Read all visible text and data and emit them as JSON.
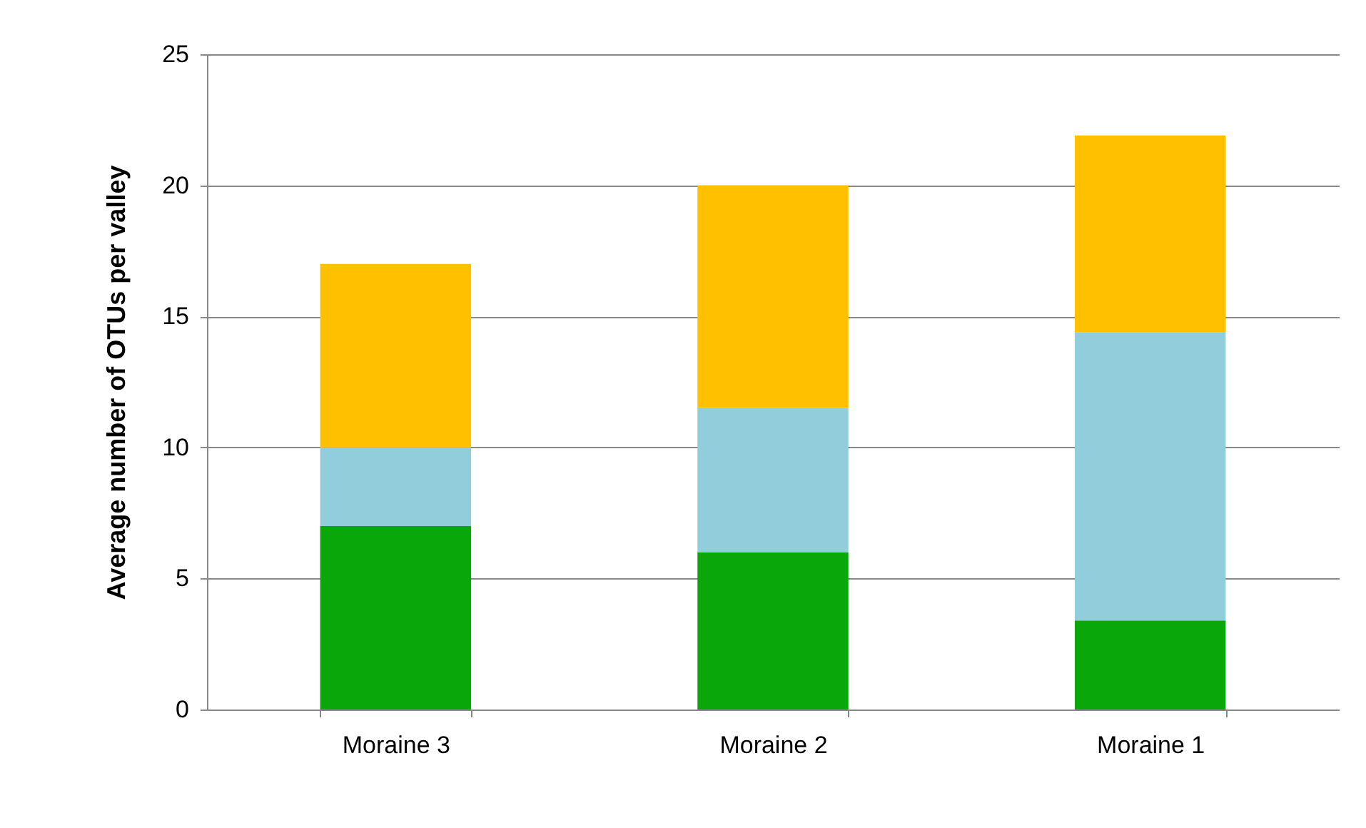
{
  "chart_data": {
    "type": "bar",
    "ylabel": "Average number of OTUs per valley",
    "categories": [
      "Moraine 3",
      "Moraine 2",
      "Moraine 1"
    ],
    "stacked": true,
    "ylim": [
      0,
      25
    ],
    "yticks": [
      0,
      5,
      10,
      15,
      20,
      25
    ],
    "grid": "y",
    "series": [
      {
        "color": "#0aa70a",
        "values": [
          7,
          6,
          3.4
        ]
      },
      {
        "color": "#92cddc",
        "values": [
          3,
          5.5,
          11
        ]
      },
      {
        "color": "#ffc000",
        "values": [
          7,
          8.5,
          7.5
        ]
      }
    ]
  }
}
